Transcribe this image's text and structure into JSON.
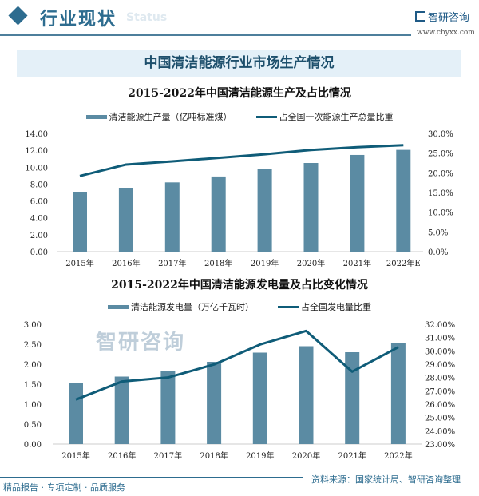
{
  "header": {
    "title": "行业现状",
    "subtitle": "Status",
    "logo": "智研咨询",
    "url": "www.chyxx.com"
  },
  "banner": "中国清洁能源行业市场生产情况",
  "footer": {
    "slogan": "精品报告 · 专项定制 · 品质服务",
    "source": "资料来源：国家统计局、智研咨询整理",
    "watermark": "智研咨询"
  },
  "colors": {
    "bar": "#5b8ba3",
    "line": "#0f5c78"
  },
  "chart_data": [
    {
      "type": "bar+line",
      "title": "2015-2022年中国清洁能源生产及占比情况",
      "categories": [
        "2015年",
        "2016年",
        "2017年",
        "2018年",
        "2019年",
        "2020年",
        "2021年",
        "2022年E"
      ],
      "series": [
        {
          "name": "清洁能源生产量（亿吨标准煤）",
          "type": "bar",
          "axis": "left",
          "values": [
            7.0,
            7.5,
            8.2,
            8.9,
            9.8,
            10.5,
            11.45,
            12.05
          ]
        },
        {
          "name": "占全国一次能源生产总量比重",
          "type": "line",
          "axis": "right",
          "values": [
            19.2,
            22.1,
            22.9,
            23.8,
            24.7,
            25.8,
            26.5,
            27.0
          ]
        }
      ],
      "yleft": {
        "ylim": [
          0,
          14
        ],
        "ticks": [
          "0.00",
          "2.00",
          "4.00",
          "6.00",
          "8.00",
          "10.00",
          "12.00",
          "14.00"
        ]
      },
      "yright": {
        "ylim": [
          0,
          30
        ],
        "ticks": [
          "0.0%",
          "5.0%",
          "10.0%",
          "15.0%",
          "20.0%",
          "25.0%",
          "30.0%"
        ]
      },
      "legend": "top",
      "grid": false
    },
    {
      "type": "bar+line",
      "title": "2015-2022年中国清洁能源发电量及占比变化情况",
      "categories": [
        "2015年",
        "2016年",
        "2017年",
        "2018年",
        "2019年",
        "2020年",
        "2021年",
        "2022年"
      ],
      "series": [
        {
          "name": "清洁能源发电量（万亿千瓦时）",
          "type": "bar",
          "axis": "left",
          "values": [
            1.53,
            1.69,
            1.84,
            2.06,
            2.29,
            2.45,
            2.3,
            2.54
          ]
        },
        {
          "name": "占全国发电量比重",
          "type": "line",
          "axis": "right",
          "values": [
            26.34,
            27.7,
            28.0,
            28.98,
            30.48,
            31.5,
            28.44,
            30.28
          ]
        }
      ],
      "yleft": {
        "ylim": [
          0,
          3
        ],
        "ticks": [
          "0.00",
          "0.50",
          "1.00",
          "1.50",
          "2.00",
          "2.50",
          "3.00"
        ]
      },
      "yright": {
        "ylim": [
          23,
          32
        ],
        "ticks": [
          "23.00%",
          "24.00%",
          "25.00%",
          "26.00%",
          "27.00%",
          "28.00%",
          "29.00%",
          "30.00%",
          "31.00%",
          "32.00%"
        ]
      },
      "legend": "top",
      "grid": false
    }
  ]
}
